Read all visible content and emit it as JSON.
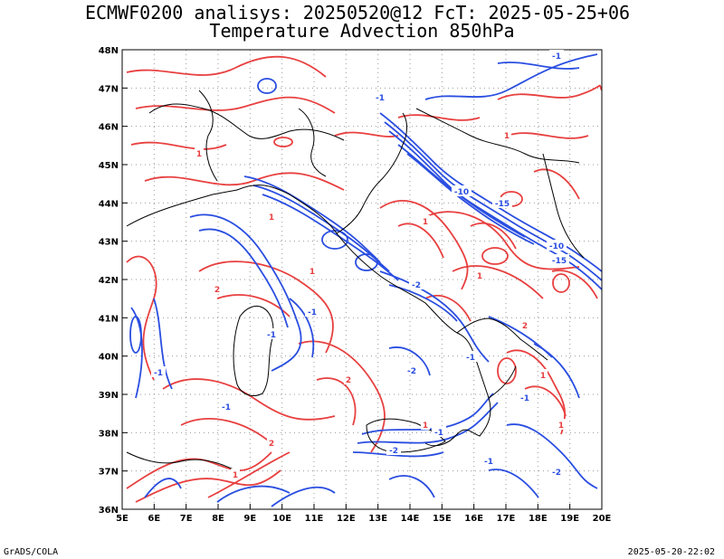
{
  "title_line1": "ECMWF0200 analisys: 20250520@12 FcT: 2025-05-25+06",
  "title_line2": "Temperature Advection 850hPa",
  "footer_left": "GrADS/COLA",
  "footer_right": "2025-05-20-22:02",
  "colors": {
    "warm": "#e84040",
    "cold": "#2a4ee0",
    "coast": "#000000",
    "grid": "#999999"
  },
  "lon_ticks": [
    "5E",
    "6E",
    "7E",
    "8E",
    "9E",
    "10E",
    "11E",
    "12E",
    "13E",
    "14E",
    "15E",
    "16E",
    "17E",
    "18E",
    "19E",
    "20E"
  ],
  "lat_ticks": [
    "36N",
    "37N",
    "38N",
    "39N",
    "40N",
    "41N",
    "42N",
    "43N",
    "44N",
    "45N",
    "46N",
    "47N",
    "48N"
  ],
  "map": {
    "lon_range": [
      5,
      20
    ],
    "lat_range": [
      36,
      48
    ],
    "warm_labels": [
      "1",
      "1",
      "2",
      "1",
      "2",
      "1",
      "1",
      "1",
      "2",
      "1",
      "1",
      "2",
      "1",
      "1"
    ],
    "cold_labels": [
      "-1",
      "-1",
      "-1",
      "-1",
      "-10",
      "-15",
      "-15",
      "-10",
      "-2",
      "-1",
      "-1",
      "-2",
      "-1",
      "-2",
      "-1",
      "-1",
      "-1",
      "-2"
    ]
  }
}
